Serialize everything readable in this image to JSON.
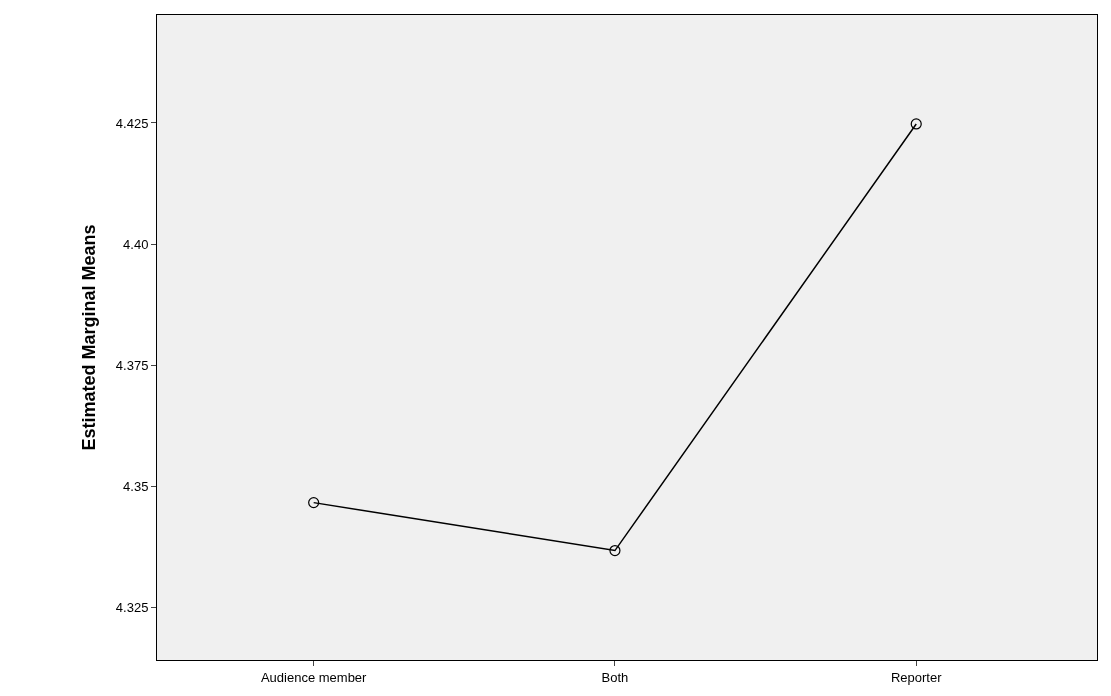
{
  "chart_data": {
    "type": "line",
    "ylabel": "Estimated Marginal Means",
    "categories": [
      "Audience member",
      "Both",
      "Reporter"
    ],
    "series": [
      {
        "color": "#000000",
        "values": [
          4.3466,
          4.3367,
          4.4248
        ]
      }
    ],
    "ylim": [
      4.3141,
      4.4473
    ],
    "yticks": [
      4.325,
      {
        "value": 4.35,
        "label": "4.35"
      },
      4.375,
      {
        "value": 4.4,
        "label": "4.40"
      },
      4.425
    ],
    "marker": "circle",
    "line_style": "solid",
    "grid": false
  }
}
